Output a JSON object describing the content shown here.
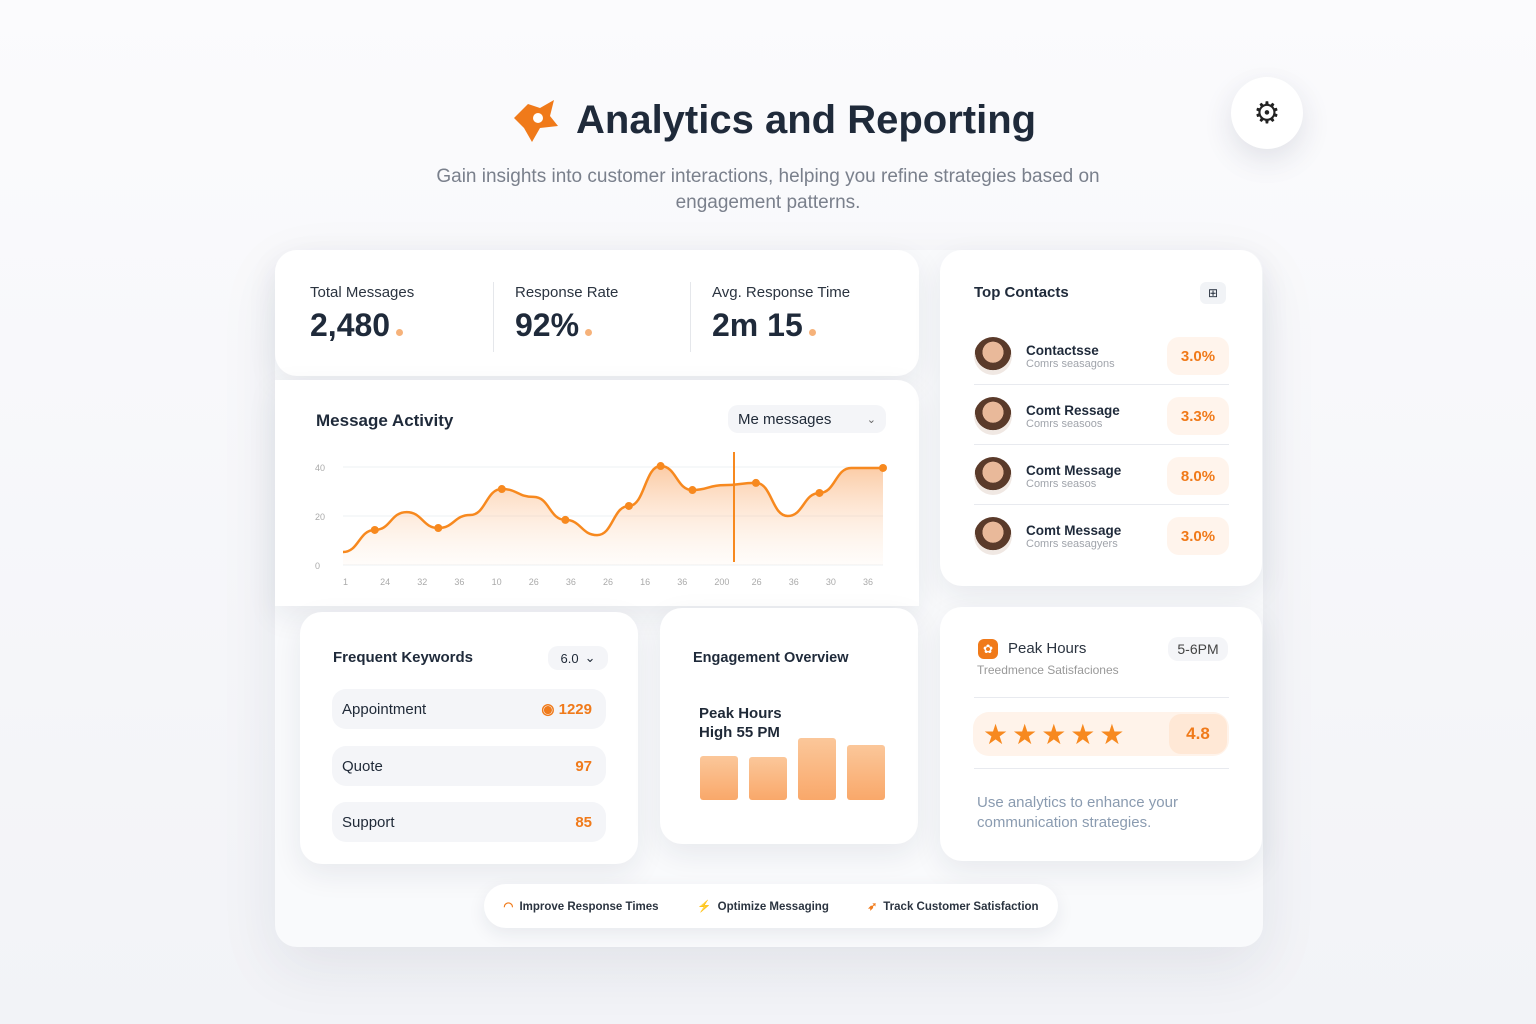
{
  "header": {
    "title": "Analytics and Reporting",
    "subtitle": "Gain insights into customer interactions, helping you refine strategies based on engagement patterns."
  },
  "stats": [
    {
      "label": "Total Messages",
      "value": "2,480"
    },
    {
      "label": "Response Rate",
      "value": "92%"
    },
    {
      "label": "Avg. Response Time",
      "value": "2m 15"
    }
  ],
  "activity": {
    "title": "Message Activity",
    "dropdown": "Me messages"
  },
  "chart_data": {
    "type": "area",
    "title": "Message Activity",
    "ylabels": [
      "40",
      "20",
      "0"
    ],
    "ylim": [
      0,
      40
    ],
    "xlabels": [
      "1",
      "24",
      "32",
      "36",
      "10",
      "26",
      "36",
      "26",
      "16",
      "36",
      "200",
      "26",
      "36",
      "30",
      "36"
    ],
    "values": [
      5.3,
      14.3,
      21.6,
      15.1,
      20.4,
      31.0,
      27.8,
      18.4,
      12.2,
      24.1,
      40.4,
      30.6,
      32.6,
      33.5,
      20.0,
      29.4,
      39.6,
      39.6
    ]
  },
  "contacts": {
    "title": "Top Contacts",
    "items": [
      {
        "name": "Contactsse",
        "sub": "Comrs seasagons",
        "pct": "3.0%"
      },
      {
        "name": "Comt Ressage",
        "sub": "Comrs seasoos",
        "pct": "3.3%"
      },
      {
        "name": "Comt Message",
        "sub": "Comrs seasos",
        "pct": "8.0%"
      },
      {
        "name": "Comt Message",
        "sub": "Comrs seasagyers",
        "pct": "3.0%"
      }
    ]
  },
  "keywords": {
    "title": "Frequent Keywords",
    "dropdown": "6.0",
    "items": [
      {
        "label": "Appointment",
        "count": "1229"
      },
      {
        "label": "Quote",
        "count": "97"
      },
      {
        "label": "Support",
        "count": "85"
      }
    ]
  },
  "engagement": {
    "title": "Engagement Overview",
    "line1": "Peak Hours",
    "line2": "High 55 PM",
    "bars": [
      44,
      43,
      62,
      55
    ]
  },
  "peak": {
    "title": "Peak Hours",
    "range": "5-6PM",
    "subtitle": "Treedmence Satisfaciones",
    "rating": "4.8",
    "stars": 5,
    "tip": "Use analytics to enhance your communication strategies."
  },
  "footer": [
    "Improve Response Times",
    "Optimize Messaging",
    "Track Customer Satisfaction"
  ],
  "colors": {
    "accent": "#f07a1a"
  }
}
